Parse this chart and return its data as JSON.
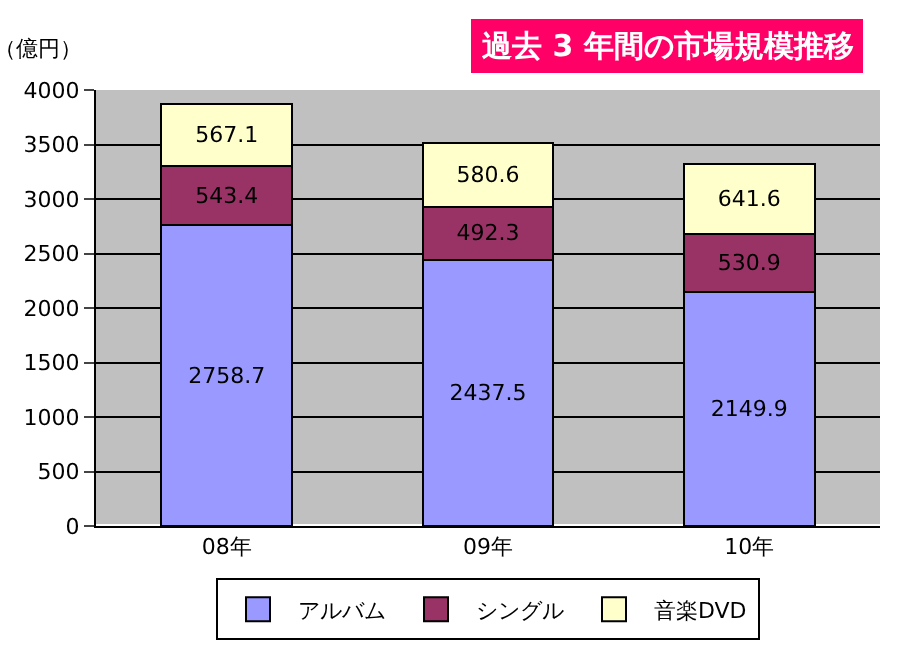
{
  "chart_data": {
    "type": "bar",
    "stacked": true,
    "title": "過去 3 年間の市場規模推移",
    "ylabel": "（億円）",
    "categories": [
      "08年",
      "09年",
      "10年"
    ],
    "series": [
      {
        "name": "アルバム",
        "color": "#9999ff",
        "values": [
          2758.7,
          2437.5,
          2149.9
        ]
      },
      {
        "name": "シングル",
        "color": "#993366",
        "values": [
          543.4,
          492.3,
          530.9
        ]
      },
      {
        "name": "音楽DVD",
        "color": "#ffffcc",
        "values": [
          567.1,
          580.6,
          641.6
        ]
      }
    ],
    "data_labels": true,
    "ylim": [
      0,
      4000
    ],
    "yticks": [
      0,
      500,
      1000,
      1500,
      2000,
      2500,
      3000,
      3500,
      4000
    ],
    "grid": "y",
    "legend": "bottom"
  }
}
